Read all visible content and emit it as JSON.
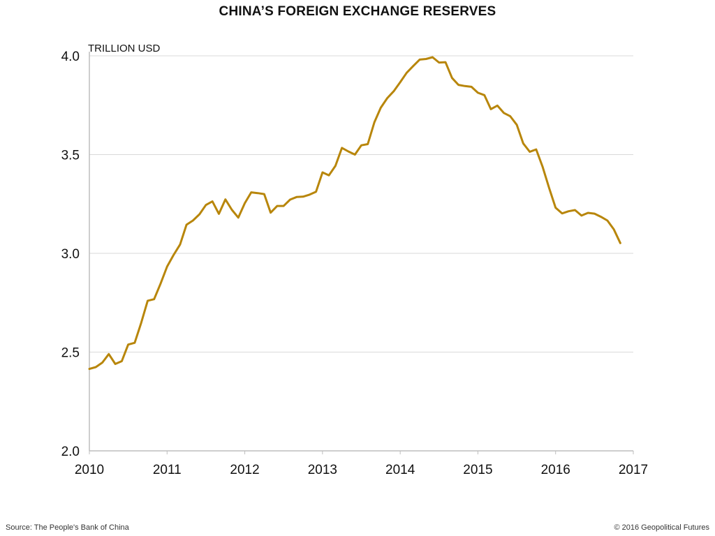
{
  "title": "CHINA’S FOREIGN EXCHANGE RESERVES",
  "source_text": "Source: The People's Bank of China",
  "copyright_text": "© 2016 Geopolitical Futures",
  "colors": {
    "line": "#B8860B",
    "grid": "#d9d9d9",
    "axis": "#bdbdbd",
    "text": "#111111"
  },
  "chart_data": {
    "type": "line",
    "title": "CHINA’S FOREIGN EXCHANGE RESERVES",
    "xlabel": "",
    "ylabel": "TRILLION USD",
    "xlim": [
      2010,
      2017
    ],
    "ylim": [
      2.0,
      4.0
    ],
    "x_ticks": [
      2010,
      2011,
      2012,
      2013,
      2014,
      2015,
      2016,
      2017
    ],
    "x_tick_labels": [
      "2010",
      "2011",
      "2012",
      "2013",
      "2014",
      "2015",
      "2016",
      "2017"
    ],
    "y_ticks": [
      2.0,
      2.5,
      3.0,
      3.5,
      4.0
    ],
    "y_tick_labels": [
      "2.0",
      "2.5",
      "3.0",
      "3.5",
      "4.0"
    ],
    "grid": "horizontal",
    "series": [
      {
        "color": "#B8860B",
        "x": [
          2010.0,
          2010.083,
          2010.167,
          2010.25,
          2010.333,
          2010.417,
          2010.5,
          2010.583,
          2010.667,
          2010.75,
          2010.833,
          2010.917,
          2011.0,
          2011.083,
          2011.167,
          2011.25,
          2011.333,
          2011.417,
          2011.5,
          2011.583,
          2011.667,
          2011.75,
          2011.833,
          2011.917,
          2012.0,
          2012.083,
          2012.167,
          2012.25,
          2012.333,
          2012.417,
          2012.5,
          2012.583,
          2012.667,
          2012.75,
          2012.833,
          2012.917,
          2013.0,
          2013.083,
          2013.167,
          2013.25,
          2013.333,
          2013.417,
          2013.5,
          2013.583,
          2013.667,
          2013.75,
          2013.833,
          2013.917,
          2014.0,
          2014.083,
          2014.167,
          2014.25,
          2014.333,
          2014.417,
          2014.5,
          2014.583,
          2014.667,
          2014.75,
          2014.833,
          2014.917,
          2015.0,
          2015.083,
          2015.167,
          2015.25,
          2015.333,
          2015.417,
          2015.5,
          2015.583,
          2015.667,
          2015.75,
          2015.833,
          2015.917,
          2016.0,
          2016.083,
          2016.167,
          2016.25,
          2016.333,
          2016.417,
          2016.5,
          2016.583,
          2016.667,
          2016.75,
          2016.833
        ],
        "y": [
          2.415,
          2.424,
          2.447,
          2.49,
          2.44,
          2.454,
          2.538,
          2.547,
          2.648,
          2.76,
          2.768,
          2.847,
          2.933,
          2.991,
          3.045,
          3.145,
          3.166,
          3.198,
          3.245,
          3.263,
          3.2,
          3.273,
          3.221,
          3.181,
          3.254,
          3.309,
          3.305,
          3.3,
          3.206,
          3.24,
          3.24,
          3.272,
          3.285,
          3.287,
          3.297,
          3.312,
          3.41,
          3.395,
          3.443,
          3.534,
          3.516,
          3.5,
          3.547,
          3.553,
          3.663,
          3.737,
          3.786,
          3.821,
          3.866,
          3.914,
          3.948,
          3.981,
          3.984,
          3.993,
          3.966,
          3.968,
          3.888,
          3.853,
          3.847,
          3.843,
          3.813,
          3.801,
          3.73,
          3.748,
          3.711,
          3.694,
          3.651,
          3.557,
          3.514,
          3.526,
          3.438,
          3.33,
          3.231,
          3.202,
          3.213,
          3.219,
          3.191,
          3.205,
          3.201,
          3.185,
          3.166,
          3.121,
          3.052
        ]
      }
    ]
  }
}
